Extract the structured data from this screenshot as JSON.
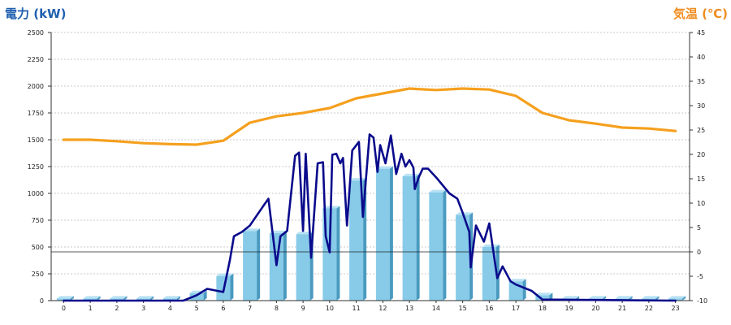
{
  "chart_data": {
    "type": "bar",
    "ylabel_left": "電力 (kW)",
    "ylabel_right": "気温 (℃)",
    "colors": {
      "bar_face": "#87cbe8",
      "bar_side": "#4a9ac0",
      "bar_top": "#b8e2f4",
      "power_line": "#0a0a8c",
      "temp_line": "#f5a01e",
      "left_label": "#1f5fb0",
      "right_label": "#f08c1e"
    },
    "grid": true,
    "left_axis": {
      "ylim": [
        0,
        2500
      ],
      "ticks": [
        "0",
        "250",
        "500",
        "750",
        "1000",
        "1250",
        "1500",
        "1750",
        "2000",
        "2250",
        "2500"
      ]
    },
    "right_axis": {
      "ylim": [
        -10,
        45
      ],
      "ticks": [
        "-10",
        "-5",
        "0",
        "5",
        "10",
        "15",
        "20",
        "25",
        "30",
        "35",
        "40",
        "45"
      ]
    },
    "categories": [
      "0",
      "1",
      "2",
      "3",
      "4",
      "5",
      "6",
      "7",
      "8",
      "9",
      "10",
      "11",
      "12",
      "13",
      "14",
      "15",
      "16",
      "17",
      "18",
      "19",
      "20",
      "21",
      "22",
      "23"
    ],
    "series": [
      {
        "type": "bar",
        "axis": "left",
        "values": [
          20,
          20,
          20,
          20,
          20,
          70,
          230,
          650,
          630,
          620,
          860,
          1120,
          1230,
          1160,
          1010,
          800,
          500,
          180,
          50,
          20,
          20,
          20,
          20,
          20
        ]
      },
      {
        "type": "line",
        "axis": "left",
        "points": [
          [
            0,
            0
          ],
          [
            4.5,
            0
          ],
          [
            5,
            50
          ],
          [
            5.4,
            110
          ],
          [
            5.8,
            90
          ],
          [
            6,
            80
          ],
          [
            6.25,
            380
          ],
          [
            6.4,
            600
          ],
          [
            6.7,
            640
          ],
          [
            7,
            700
          ],
          [
            7.5,
            880
          ],
          [
            7.7,
            950
          ],
          [
            8,
            330
          ],
          [
            8.15,
            600
          ],
          [
            8.4,
            650
          ],
          [
            8.7,
            1350
          ],
          [
            8.85,
            1380
          ],
          [
            9,
            650
          ],
          [
            9.1,
            1370
          ],
          [
            9.3,
            400
          ],
          [
            9.55,
            1280
          ],
          [
            9.75,
            1290
          ],
          [
            9.85,
            600
          ],
          [
            10,
            450
          ],
          [
            10.1,
            1360
          ],
          [
            10.25,
            1370
          ],
          [
            10.4,
            1280
          ],
          [
            10.5,
            1330
          ],
          [
            10.65,
            700
          ],
          [
            10.85,
            1400
          ],
          [
            11.1,
            1480
          ],
          [
            11.25,
            780
          ],
          [
            11.5,
            1550
          ],
          [
            11.65,
            1520
          ],
          [
            11.8,
            1200
          ],
          [
            11.9,
            1450
          ],
          [
            12.1,
            1280
          ],
          [
            12.3,
            1540
          ],
          [
            12.5,
            1180
          ],
          [
            12.7,
            1370
          ],
          [
            12.85,
            1250
          ],
          [
            13,
            1310
          ],
          [
            13.15,
            1240
          ],
          [
            13.2,
            1040
          ],
          [
            13.35,
            1150
          ],
          [
            13.5,
            1230
          ],
          [
            13.7,
            1230
          ],
          [
            14,
            1150
          ],
          [
            14.5,
            1000
          ],
          [
            14.8,
            950
          ],
          [
            15,
            820
          ],
          [
            15.25,
            640
          ],
          [
            15.3,
            310
          ],
          [
            15.5,
            700
          ],
          [
            15.8,
            550
          ],
          [
            16.0,
            720
          ],
          [
            16.3,
            210
          ],
          [
            16.5,
            320
          ],
          [
            16.8,
            180
          ],
          [
            17,
            150
          ],
          [
            17.6,
            90
          ],
          [
            18,
            10
          ],
          [
            23,
            0
          ]
        ]
      },
      {
        "type": "line",
        "axis": "right",
        "points": [
          [
            0,
            23
          ],
          [
            1,
            23
          ],
          [
            2,
            22.7
          ],
          [
            3,
            22.3
          ],
          [
            4,
            22.1
          ],
          [
            5,
            22
          ],
          [
            6,
            22.8
          ],
          [
            7,
            26.5
          ],
          [
            8,
            27.8
          ],
          [
            9,
            28.5
          ],
          [
            10,
            29.5
          ],
          [
            11,
            31.5
          ],
          [
            12,
            32.5
          ],
          [
            13,
            33.5
          ],
          [
            14,
            33.2
          ],
          [
            15,
            33.5
          ],
          [
            16,
            33.3
          ],
          [
            17,
            32
          ],
          [
            18,
            28.5
          ],
          [
            19,
            27
          ],
          [
            20,
            26.3
          ],
          [
            21,
            25.5
          ],
          [
            22,
            25.3
          ],
          [
            23,
            24.8
          ]
        ]
      }
    ]
  }
}
